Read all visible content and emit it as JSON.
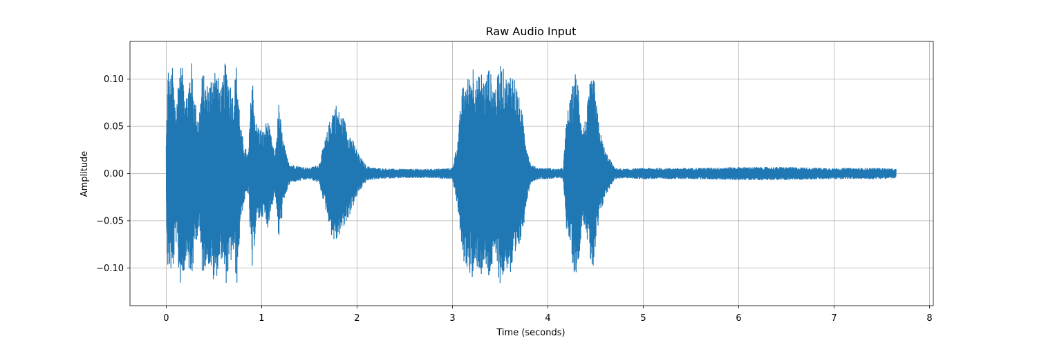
{
  "chart_data": {
    "type": "line",
    "title": "Raw Audio Input",
    "xlabel": "Time (seconds)",
    "ylabel": "Amplitude",
    "xlim": [
      -0.38,
      8.04
    ],
    "ylim": [
      -0.14,
      0.14
    ],
    "xticks": [
      0,
      1,
      2,
      3,
      4,
      5,
      6,
      7,
      8
    ],
    "xtick_labels": [
      "0",
      "1",
      "2",
      "3",
      "4",
      "5",
      "6",
      "7",
      "8"
    ],
    "yticks": [
      -0.1,
      -0.05,
      0.0,
      0.05,
      0.1
    ],
    "ytick_labels": [
      "−0.10",
      "−0.05",
      "0.00",
      "0.05",
      "0.10"
    ],
    "grid": true,
    "duration_seconds": 7.65,
    "series": [
      {
        "color": "#1f77b4",
        "envelope_time": [
          0.0,
          0.02,
          0.04,
          0.06,
          0.1,
          0.14,
          0.18,
          0.22,
          0.26,
          0.3,
          0.34,
          0.38,
          0.42,
          0.46,
          0.5,
          0.54,
          0.58,
          0.62,
          0.66,
          0.7,
          0.74,
          0.78,
          0.82,
          0.86,
          0.9,
          0.94,
          0.98,
          1.02,
          1.06,
          1.1,
          1.14,
          1.18,
          1.22,
          1.26,
          1.3,
          1.4,
          1.5,
          1.6,
          1.7,
          1.74,
          1.78,
          1.82,
          1.86,
          1.9,
          1.94,
          1.98,
          2.02,
          2.1,
          2.2,
          2.4,
          2.6,
          2.8,
          3.0,
          3.06,
          3.1,
          3.14,
          3.18,
          3.22,
          3.26,
          3.3,
          3.34,
          3.38,
          3.42,
          3.46,
          3.5,
          3.54,
          3.58,
          3.62,
          3.66,
          3.7,
          3.74,
          3.78,
          3.82,
          3.9,
          4.0,
          4.1,
          4.16,
          4.2,
          4.24,
          4.28,
          4.32,
          4.36,
          4.4,
          4.44,
          4.48,
          4.52,
          4.56,
          4.6,
          4.7,
          4.8,
          5.0,
          5.5,
          6.0,
          6.5,
          7.0,
          7.5,
          7.65
        ],
        "envelope_amplitude": [
          0.035,
          0.12,
          0.095,
          0.12,
          0.07,
          0.12,
          0.11,
          0.085,
          0.125,
          0.08,
          0.06,
          0.11,
          0.095,
          0.1,
          0.12,
          0.105,
          0.09,
          0.12,
          0.105,
          0.085,
          0.12,
          0.05,
          0.03,
          0.02,
          0.11,
          0.055,
          0.05,
          0.045,
          0.06,
          0.04,
          0.02,
          0.075,
          0.04,
          0.02,
          0.01,
          0.008,
          0.006,
          0.01,
          0.05,
          0.07,
          0.075,
          0.065,
          0.06,
          0.05,
          0.04,
          0.03,
          0.02,
          0.008,
          0.006,
          0.005,
          0.005,
          0.005,
          0.006,
          0.04,
          0.09,
          0.1,
          0.105,
          0.12,
          0.1,
          0.11,
          0.1,
          0.115,
          0.1,
          0.095,
          0.12,
          0.11,
          0.1,
          0.115,
          0.1,
          0.08,
          0.06,
          0.03,
          0.01,
          0.006,
          0.006,
          0.005,
          0.006,
          0.065,
          0.08,
          0.11,
          0.1,
          0.05,
          0.06,
          0.095,
          0.105,
          0.065,
          0.04,
          0.025,
          0.006,
          0.005,
          0.006,
          0.006,
          0.007,
          0.007,
          0.006,
          0.006,
          0.005
        ]
      }
    ]
  }
}
